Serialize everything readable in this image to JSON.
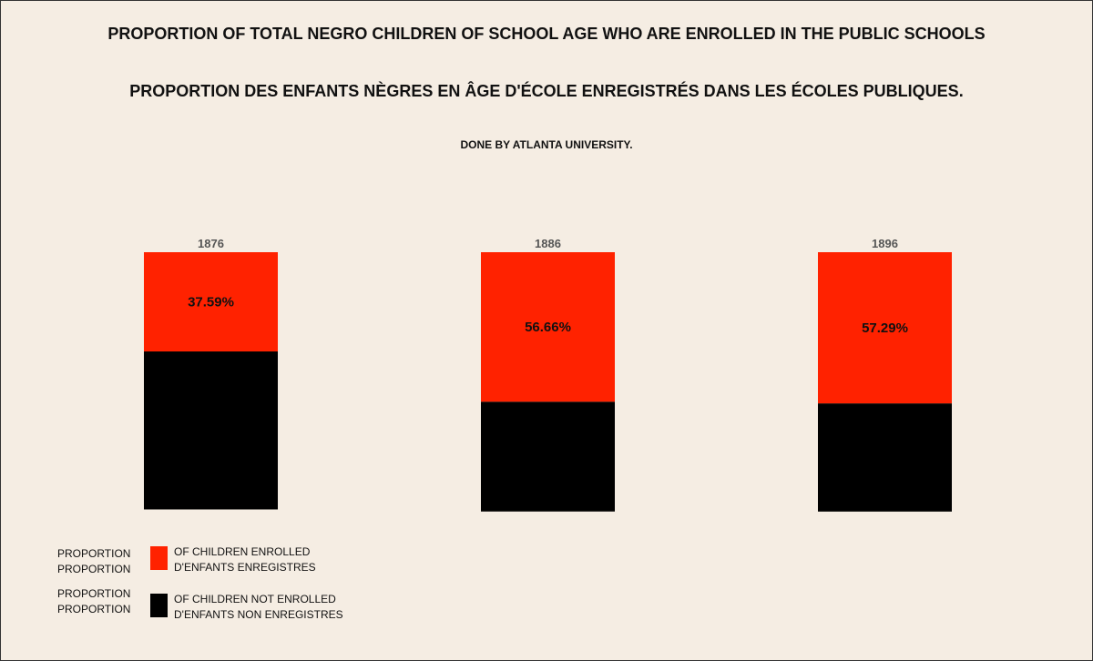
{
  "chart_data": {
    "type": "bar",
    "title": "PROPORTION OF TOTAL NEGRO CHILDREN OF SCHOOL AGE WHO ARE ENROLLED IN THE PUBLIC SCHOOLS",
    "subtitle": "PROPORTION DES ENFANTS NÈGRES EN ÂGE D'ÉCOLE ENREGISTRÉS DANS LES ÉCOLES PUBLIQUES.",
    "credit": "DONE BY ATLANTA UNIVERSITY.",
    "categories": [
      "1876",
      "1886",
      "1896"
    ],
    "series": [
      {
        "name": "OF CHILDREN ENROLLED",
        "values": [
          37.59,
          56.66,
          57.29
        ],
        "labels": [
          "37.59%",
          "56.66%",
          "57.29%"
        ]
      },
      {
        "name": "OF CHILDREN NOT ENROLLED",
        "values": [
          62.41,
          43.34,
          42.71
        ]
      }
    ],
    "stacked": true,
    "legend_position": "bottom-left",
    "colors": {
      "enrolled": "#ff2200",
      "not_enrolled": "#000000",
      "background": "#f5ede3"
    }
  },
  "legend": [
    {
      "prefix_line1": "PROPORTION",
      "prefix_line2": "PROPORTION",
      "label_line1": "OF CHILDREN ENROLLED",
      "label_line2": "D'ENFANTS ENREGISTRES",
      "color": "#ff2200"
    },
    {
      "prefix_line1": "PROPORTION",
      "prefix_line2": "PROPORTION",
      "label_line1": "OF CHILDREN NOT ENROLLED",
      "label_line2": "D'ENFANTS NON ENREGISTRES",
      "color": "#000000"
    }
  ]
}
